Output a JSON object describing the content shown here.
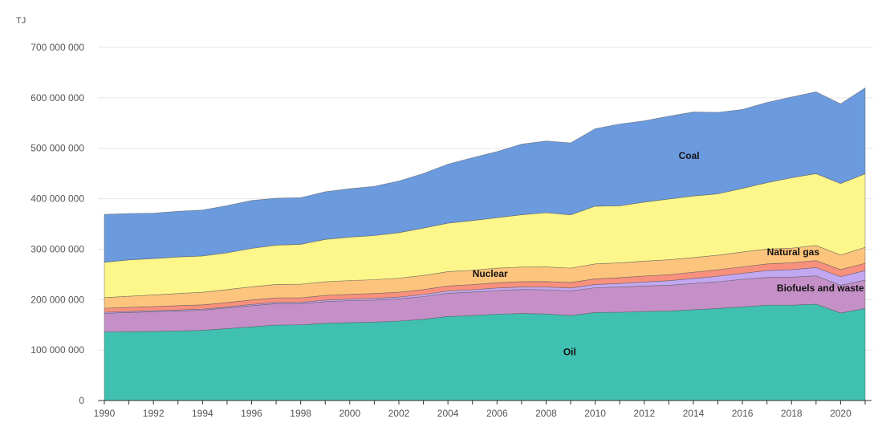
{
  "chart_data": {
    "type": "area",
    "stacked": true,
    "unit_label": "TJ",
    "ylim": [
      0,
      700000000
    ],
    "y_ticks": [
      0,
      100000000,
      200000000,
      300000000,
      400000000,
      500000000,
      600000000,
      700000000
    ],
    "y_tick_labels": [
      "0",
      "100 000 000",
      "200 000 000",
      "300 000 000",
      "400 000 000",
      "500 000 000",
      "600 000 000",
      "700 000 000"
    ],
    "x_ticks": [
      1990,
      1992,
      1994,
      1996,
      1998,
      2000,
      2002,
      2004,
      2006,
      2008,
      2010,
      2012,
      2014,
      2016,
      2018,
      2020
    ],
    "x_tick_labels": [
      "1990",
      "1992",
      "1994",
      "1996",
      "1998",
      "2000",
      "2002",
      "2004",
      "2006",
      "2008",
      "2010",
      "2012",
      "2014",
      "2016",
      "2018",
      "2020"
    ],
    "x": [
      1990,
      1991,
      1992,
      1993,
      1994,
      1995,
      1996,
      1997,
      1998,
      1999,
      2000,
      2001,
      2002,
      2003,
      2004,
      2005,
      2006,
      2007,
      2008,
      2009,
      2010,
      2011,
      2012,
      2013,
      2014,
      2015,
      2016,
      2017,
      2018,
      2019,
      2020,
      2021
    ],
    "grid": true,
    "series": [
      {
        "name": "Oil",
        "color": "#40c0b0",
        "label_at": [
          2008.7,
          90000000
        ],
        "values": [
          136000000,
          136500000,
          137000000,
          138000000,
          139000000,
          142500000,
          146000000,
          149500000,
          150000000,
          153000000,
          154500000,
          155500000,
          157500000,
          161000000,
          166500000,
          168500000,
          171000000,
          172500000,
          171500000,
          168500000,
          174500000,
          175000000,
          176500000,
          177500000,
          180000000,
          182500000,
          185500000,
          189000000,
          189000000,
          191000000,
          173500000,
          182500000
        ]
      },
      {
        "name": "Biofuels and waste",
        "color": "#c590c8",
        "label_at": [
          2017.4,
          216000000
        ],
        "values": [
          37000000,
          38000000,
          39000000,
          39500000,
          40000000,
          41000000,
          42000000,
          42500000,
          42000000,
          43000000,
          43500000,
          43500000,
          44000000,
          45000000,
          46000000,
          46500000,
          47000000,
          47500000,
          48000000,
          48500000,
          49000000,
          50000000,
          50500000,
          51000000,
          52000000,
          53000000,
          54500000,
          55000000,
          55500000,
          56000000,
          55000000,
          56000000
        ]
      },
      {
        "name": "",
        "color": "#c2a8f0",
        "values": [
          2000000,
          2000000,
          2000000,
          2000000,
          2000000,
          2000000,
          2500000,
          2500000,
          2500000,
          3000000,
          3000000,
          3500000,
          3500000,
          4000000,
          4500000,
          4500000,
          5000000,
          5000000,
          5500000,
          6000000,
          6500000,
          7000000,
          8000000,
          9000000,
          10000000,
          11000000,
          12000000,
          13500000,
          15000000,
          16500000,
          17000000,
          19000000
        ]
      },
      {
        "name": "",
        "color": "#f8907e",
        "values": [
          8000000,
          8200000,
          8300000,
          8500000,
          8600000,
          8800000,
          8900000,
          9000000,
          9100000,
          9300000,
          9400000,
          9500000,
          9600000,
          9800000,
          10000000,
          10200000,
          10400000,
          10600000,
          10800000,
          11000000,
          11200000,
          11500000,
          11800000,
          12000000,
          12300000,
          12600000,
          12900000,
          13200000,
          13500000,
          13800000,
          14000000,
          14500000
        ]
      },
      {
        "name": "Nuclear",
        "color": "#fcc47c",
        "label_at": [
          2005.0,
          245000000
        ],
        "values": [
          21000000,
          22000000,
          23000000,
          24000000,
          25000000,
          25500000,
          26000000,
          26500000,
          27000000,
          27000000,
          27500000,
          27500000,
          28000000,
          28000000,
          28500000,
          28500000,
          29000000,
          29000000,
          29000000,
          28500000,
          29500000,
          29500000,
          29500000,
          29500000,
          29000000,
          29000000,
          29500000,
          29500000,
          29000000,
          30000000,
          29000000,
          31500000
        ]
      },
      {
        "name": "Natural gas",
        "color": "#fdf68a",
        "label_at": [
          2017.0,
          288000000
        ],
        "values": [
          70000000,
          72000000,
          72000000,
          72500000,
          72000000,
          73000000,
          76000000,
          78000000,
          79000000,
          84000000,
          86000000,
          87500000,
          90000000,
          94000000,
          96000000,
          98500000,
          100000000,
          103500000,
          107500000,
          105500000,
          114500000,
          113000000,
          117000000,
          120500000,
          122000000,
          121500000,
          126000000,
          131500000,
          139500000,
          142500000,
          141500000,
          146000000
        ]
      },
      {
        "name": "Coal",
        "color": "#6b9ade",
        "label_at": [
          2013.4,
          479000000
        ],
        "values": [
          95000000,
          92000000,
          90000000,
          90500000,
          91000000,
          93500000,
          95000000,
          93000000,
          92500000,
          94500000,
          96000000,
          97500000,
          102500000,
          108000000,
          117000000,
          124500000,
          131000000,
          140000000,
          142000000,
          142500000,
          153500000,
          162000000,
          161000000,
          164000000,
          166500000,
          161500000,
          156500000,
          159000000,
          160000000,
          162000000,
          158000000,
          170000000
        ]
      }
    ]
  }
}
